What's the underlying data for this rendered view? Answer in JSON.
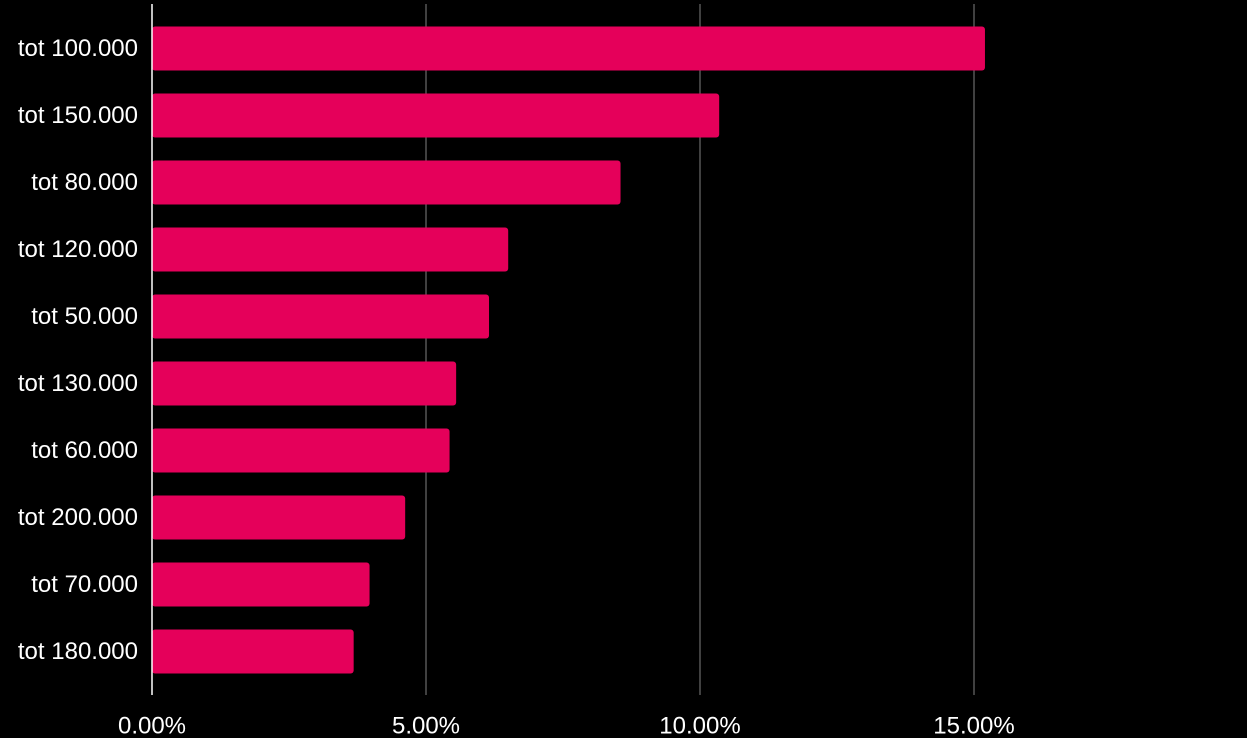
{
  "colors": {
    "background": "#000000",
    "bar": "#e5005a",
    "grid": "#555555",
    "axis": "#ffffff",
    "text": "#ffffff"
  },
  "chart_data": {
    "type": "bar",
    "orientation": "horizontal",
    "categories": [
      "tot 100.000",
      "tot 150.000",
      "tot 80.000",
      "tot 120.000",
      "tot 50.000",
      "tot 130.000",
      "tot 60.000",
      "tot 200.000",
      "tot 70.000",
      "tot 180.000"
    ],
    "values": [
      15.2,
      10.35,
      8.55,
      6.5,
      6.15,
      5.55,
      5.43,
      4.62,
      3.97,
      3.68
    ],
    "value_unit": "%",
    "xlim": [
      0,
      20
    ],
    "x_ticks": [
      0,
      5,
      10,
      15
    ],
    "x_tick_labels": [
      "0.00%",
      "5.00%",
      "10.00%",
      "15.00%"
    ],
    "grid": true,
    "title": "",
    "xlabel": "",
    "ylabel": ""
  }
}
